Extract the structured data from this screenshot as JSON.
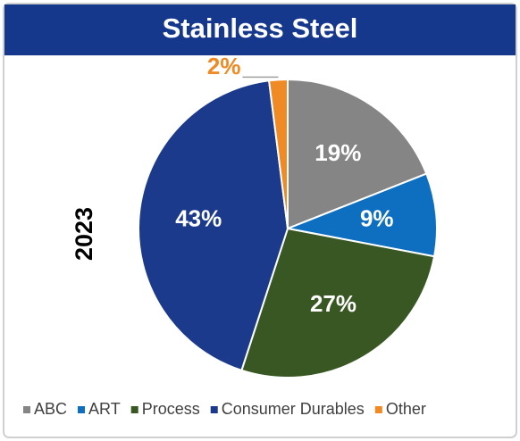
{
  "chart_data": {
    "type": "pie",
    "title": "Stainless Steel",
    "panel_label": "2023",
    "categories": [
      "ABC",
      "ART",
      "Process",
      "Consumer Durables",
      "Other"
    ],
    "values": [
      19,
      9,
      27,
      43,
      2
    ],
    "value_labels": [
      "19%",
      "9%",
      "27%",
      "43%",
      "2%"
    ],
    "colors": [
      "#858585",
      "#0e6fc0",
      "#385722",
      "#1c3a8c",
      "#f08a24"
    ],
    "legend": "bottom"
  }
}
